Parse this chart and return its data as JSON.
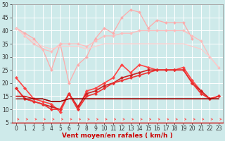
{
  "x": [
    0,
    1,
    2,
    3,
    4,
    5,
    6,
    7,
    8,
    9,
    10,
    11,
    12,
    13,
    14,
    15,
    16,
    17,
    18,
    19,
    20,
    21,
    22,
    23
  ],
  "series": [
    {
      "color": "#ffaaaa",
      "lw": 0.9,
      "marker": "D",
      "ms": 2.0,
      "values": [
        41,
        39,
        37,
        33,
        25,
        35,
        20,
        27,
        30,
        37,
        41,
        39,
        45,
        48,
        47,
        41,
        44,
        43,
        43,
        43,
        37,
        null,
        null,
        null
      ]
    },
    {
      "color": "#ffbbbb",
      "lw": 0.9,
      "marker": "D",
      "ms": 2.0,
      "values": [
        41,
        38,
        35,
        33,
        32,
        35,
        35,
        35,
        34,
        36,
        38,
        38,
        39,
        39,
        40,
        40,
        40,
        40,
        40,
        40,
        38,
        36,
        30,
        26
      ]
    },
    {
      "color": "#ffcccc",
      "lw": 0.9,
      "marker": null,
      "ms": 0,
      "values": [
        41,
        38,
        36,
        34,
        33,
        34,
        34,
        34,
        33,
        34,
        35,
        35,
        35,
        35,
        35,
        35,
        35,
        35,
        35,
        35,
        34,
        33,
        30,
        26
      ]
    },
    {
      "color": "#ff4444",
      "lw": 1.2,
      "marker": "D",
      "ms": 2.2,
      "values": [
        22,
        18,
        14,
        13,
        12,
        9,
        16,
        10,
        17,
        18,
        20,
        22,
        27,
        24,
        27,
        26,
        25,
        25,
        25,
        26,
        21,
        17,
        14,
        15
      ]
    },
    {
      "color": "#cc2222",
      "lw": 1.2,
      "marker": "D",
      "ms": 2.2,
      "values": [
        18,
        14,
        13,
        12,
        11,
        10,
        16,
        11,
        16,
        17,
        19,
        20,
        22,
        23,
        24,
        25,
        25,
        25,
        25,
        25,
        20,
        17,
        14,
        15
      ]
    },
    {
      "color": "#ee3333",
      "lw": 1.2,
      "marker": "D",
      "ms": 2.2,
      "values": [
        18,
        14,
        13,
        12,
        10,
        10,
        16,
        10,
        15,
        16,
        18,
        20,
        21,
        22,
        23,
        24,
        25,
        25,
        25,
        25,
        20,
        16,
        14,
        15
      ]
    },
    {
      "color": "#cc0000",
      "lw": 1.0,
      "marker": null,
      "ms": 0,
      "values": [
        15,
        15,
        14,
        14,
        13,
        13,
        14,
        14,
        14,
        14,
        14,
        14,
        14,
        14,
        14,
        14,
        14,
        14,
        14,
        14,
        14,
        14,
        14,
        14
      ]
    },
    {
      "color": "#880000",
      "lw": 0.9,
      "marker": null,
      "ms": 0,
      "values": [
        14,
        14,
        14,
        14,
        13,
        13,
        14,
        14,
        14,
        14,
        14,
        14,
        14,
        14,
        14,
        14,
        14,
        14,
        14,
        14,
        14,
        14,
        14,
        14
      ]
    }
  ],
  "ylim": [
    5,
    50
  ],
  "xlim": [
    -0.5,
    23.5
  ],
  "yticks": [
    5,
    10,
    15,
    20,
    25,
    30,
    35,
    40,
    45,
    50
  ],
  "xticks": [
    0,
    1,
    2,
    3,
    4,
    5,
    6,
    7,
    8,
    9,
    10,
    11,
    12,
    13,
    14,
    15,
    16,
    17,
    18,
    19,
    20,
    21,
    22,
    23
  ],
  "xlabel": "Vent moyen/en rafales ( km/h )",
  "bg_color": "#ceeaea",
  "grid_color": "#ffffff",
  "arrow_color": "#ff5555",
  "xlabel_color": "#cc0000",
  "xlabel_fontsize": 6.5,
  "tick_fontsize": 5.5
}
